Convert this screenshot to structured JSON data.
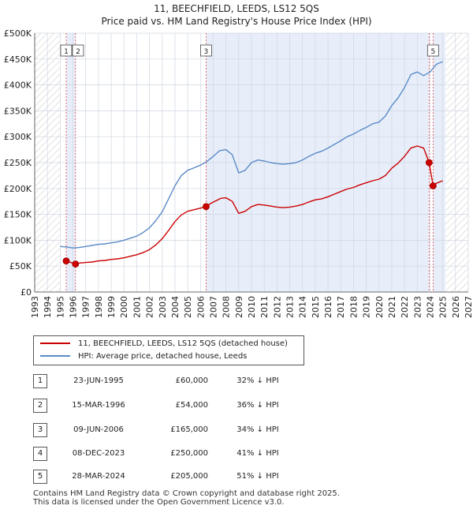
{
  "title_line1": "11, BEECHFIELD, LEEDS, LS12 5QS",
  "title_line2": "Price paid vs. HM Land Registry's House Price Index (HPI)",
  "legend": {
    "red_label": "11, BEECHFIELD, LEEDS, LS12 5QS (detached house)",
    "blue_label": "HPI: Average price, detached house, Leeds"
  },
  "colors": {
    "red": "#cc0000",
    "blue": "#5b8ac7",
    "shade": "#e7eefa",
    "grid": "#cfd6e2",
    "marker_line": "#dd4444"
  },
  "transactions": [
    {
      "num": "1",
      "date": "23-JUN-1995",
      "price": "£60,000",
      "hpi": "32% ↓ HPI"
    },
    {
      "num": "2",
      "date": "15-MAR-1996",
      "price": "£54,000",
      "hpi": "36% ↓ HPI"
    },
    {
      "num": "3",
      "date": "09-JUN-2006",
      "price": "£165,000",
      "hpi": "34% ↓ HPI"
    },
    {
      "num": "4",
      "date": "08-DEC-2023",
      "price": "£250,000",
      "hpi": "41% ↓ HPI"
    },
    {
      "num": "5",
      "date": "28-MAR-2024",
      "price": "£205,000",
      "hpi": "51% ↓ HPI"
    }
  ],
  "footer_line1": "Contains HM Land Registry data © Crown copyright and database right 2025.",
  "footer_line2": "This data is licensed under the Open Government Licence v3.0.",
  "chart_data": {
    "type": "line",
    "title": "11, BEECHFIELD, LEEDS, LS12 5QS — Price paid vs. HM Land Registry's House Price Index (HPI)",
    "xlim": [
      1993,
      2027
    ],
    "ylim": [
      0,
      500000
    ],
    "x_ticks": [
      1993,
      1994,
      1995,
      1996,
      1997,
      1998,
      1999,
      2000,
      2001,
      2002,
      2003,
      2004,
      2005,
      2006,
      2007,
      2008,
      2009,
      2010,
      2011,
      2012,
      2013,
      2014,
      2015,
      2016,
      2017,
      2018,
      2019,
      2020,
      2021,
      2022,
      2023,
      2024,
      2025,
      2026,
      2027
    ],
    "y_ticks": [
      {
        "value": 0,
        "label": "£0"
      },
      {
        "value": 50000,
        "label": "£50K"
      },
      {
        "value": 100000,
        "label": "£100K"
      },
      {
        "value": 150000,
        "label": "£150K"
      },
      {
        "value": 200000,
        "label": "£200K"
      },
      {
        "value": 250000,
        "label": "£250K"
      },
      {
        "value": 300000,
        "label": "£300K"
      },
      {
        "value": 350000,
        "label": "£350K"
      },
      {
        "value": 400000,
        "label": "£400K"
      },
      {
        "value": 450000,
        "label": "£450K"
      },
      {
        "value": 500000,
        "label": "£500K"
      }
    ],
    "hatched_before": 1995.0,
    "hatched_after": 2025.2,
    "shaded_ranges": [
      [
        1995.47,
        1996.2
      ],
      [
        2006.44,
        2023.93
      ],
      [
        2024.24,
        2025.2
      ]
    ],
    "series": [
      {
        "name": "HPI: Average price, detached house, Leeds",
        "color": "#5b8ac7",
        "points": [
          [
            1995.0,
            88000
          ],
          [
            1995.5,
            87000
          ],
          [
            1996.0,
            85000
          ],
          [
            1996.5,
            86000
          ],
          [
            1997.0,
            88000
          ],
          [
            1997.5,
            90000
          ],
          [
            1998.0,
            92000
          ],
          [
            1998.5,
            93000
          ],
          [
            1999.0,
            95000
          ],
          [
            1999.5,
            97000
          ],
          [
            2000.0,
            100000
          ],
          [
            2000.5,
            104000
          ],
          [
            2001.0,
            108000
          ],
          [
            2001.5,
            115000
          ],
          [
            2002.0,
            124000
          ],
          [
            2002.5,
            138000
          ],
          [
            2003.0,
            155000
          ],
          [
            2003.5,
            180000
          ],
          [
            2004.0,
            205000
          ],
          [
            2004.5,
            225000
          ],
          [
            2005.0,
            235000
          ],
          [
            2005.5,
            240000
          ],
          [
            2006.0,
            245000
          ],
          [
            2006.5,
            252000
          ],
          [
            2007.0,
            262000
          ],
          [
            2007.5,
            273000
          ],
          [
            2008.0,
            275000
          ],
          [
            2008.5,
            265000
          ],
          [
            2009.0,
            230000
          ],
          [
            2009.5,
            235000
          ],
          [
            2010.0,
            250000
          ],
          [
            2010.5,
            255000
          ],
          [
            2011.0,
            253000
          ],
          [
            2011.5,
            250000
          ],
          [
            2012.0,
            248000
          ],
          [
            2012.5,
            247000
          ],
          [
            2013.0,
            248000
          ],
          [
            2013.5,
            250000
          ],
          [
            2014.0,
            255000
          ],
          [
            2014.5,
            262000
          ],
          [
            2015.0,
            268000
          ],
          [
            2015.5,
            272000
          ],
          [
            2016.0,
            278000
          ],
          [
            2016.5,
            285000
          ],
          [
            2017.0,
            292000
          ],
          [
            2017.5,
            300000
          ],
          [
            2018.0,
            305000
          ],
          [
            2018.5,
            312000
          ],
          [
            2019.0,
            318000
          ],
          [
            2019.5,
            325000
          ],
          [
            2020.0,
            328000
          ],
          [
            2020.5,
            340000
          ],
          [
            2021.0,
            360000
          ],
          [
            2021.5,
            375000
          ],
          [
            2022.0,
            395000
          ],
          [
            2022.5,
            420000
          ],
          [
            2023.0,
            425000
          ],
          [
            2023.5,
            418000
          ],
          [
            2024.0,
            425000
          ],
          [
            2024.5,
            440000
          ],
          [
            2025.0,
            445000
          ]
        ]
      },
      {
        "name": "11, BEECHFIELD, LEEDS, LS12 5QS (detached house)",
        "color": "#cc0000",
        "points": [
          [
            1995.47,
            60000
          ],
          [
            1996.2,
            54000
          ],
          [
            1996.5,
            56000
          ],
          [
            1997.0,
            57000
          ],
          [
            1997.5,
            58000
          ],
          [
            1998.0,
            60000
          ],
          [
            1998.5,
            61000
          ],
          [
            1999.0,
            63000
          ],
          [
            1999.5,
            64000
          ],
          [
            2000.0,
            66000
          ],
          [
            2000.5,
            69000
          ],
          [
            2001.0,
            72000
          ],
          [
            2001.5,
            76000
          ],
          [
            2002.0,
            82000
          ],
          [
            2002.5,
            91000
          ],
          [
            2003.0,
            103000
          ],
          [
            2003.5,
            119000
          ],
          [
            2004.0,
            136000
          ],
          [
            2004.5,
            149000
          ],
          [
            2005.0,
            156000
          ],
          [
            2005.5,
            159000
          ],
          [
            2006.0,
            162000
          ],
          [
            2006.44,
            165000
          ],
          [
            2006.8,
            171000
          ],
          [
            2007.2,
            176000
          ],
          [
            2007.6,
            181000
          ],
          [
            2008.0,
            182000
          ],
          [
            2008.5,
            175000
          ],
          [
            2009.0,
            152000
          ],
          [
            2009.5,
            156000
          ],
          [
            2010.0,
            165000
          ],
          [
            2010.5,
            169000
          ],
          [
            2011.0,
            168000
          ],
          [
            2011.5,
            166000
          ],
          [
            2012.0,
            164000
          ],
          [
            2012.5,
            163000
          ],
          [
            2013.0,
            164000
          ],
          [
            2013.5,
            166000
          ],
          [
            2014.0,
            169000
          ],
          [
            2014.5,
            174000
          ],
          [
            2015.0,
            178000
          ],
          [
            2015.5,
            180000
          ],
          [
            2016.0,
            184000
          ],
          [
            2016.5,
            189000
          ],
          [
            2017.0,
            194000
          ],
          [
            2017.5,
            199000
          ],
          [
            2018.0,
            202000
          ],
          [
            2018.5,
            207000
          ],
          [
            2019.0,
            211000
          ],
          [
            2019.5,
            215000
          ],
          [
            2020.0,
            218000
          ],
          [
            2020.5,
            225000
          ],
          [
            2021.0,
            239000
          ],
          [
            2021.5,
            249000
          ],
          [
            2022.0,
            262000
          ],
          [
            2022.5,
            278000
          ],
          [
            2023.0,
            282000
          ],
          [
            2023.5,
            278000
          ],
          [
            2023.93,
            250000
          ],
          [
            2024.24,
            205000
          ],
          [
            2024.5,
            210000
          ],
          [
            2025.0,
            215000
          ]
        ]
      }
    ],
    "sales": [
      {
        "num": "1",
        "x": 1995.47,
        "price": 60000
      },
      {
        "num": "2",
        "x": 1996.2,
        "price": 54000
      },
      {
        "num": "3",
        "x": 2006.44,
        "price": 165000
      },
      {
        "num": "4",
        "x": 2023.93,
        "price": 250000
      },
      {
        "num": "5",
        "x": 2024.24,
        "price": 205000
      }
    ],
    "markers_shown": [
      "1",
      "2",
      "3",
      "5"
    ]
  }
}
